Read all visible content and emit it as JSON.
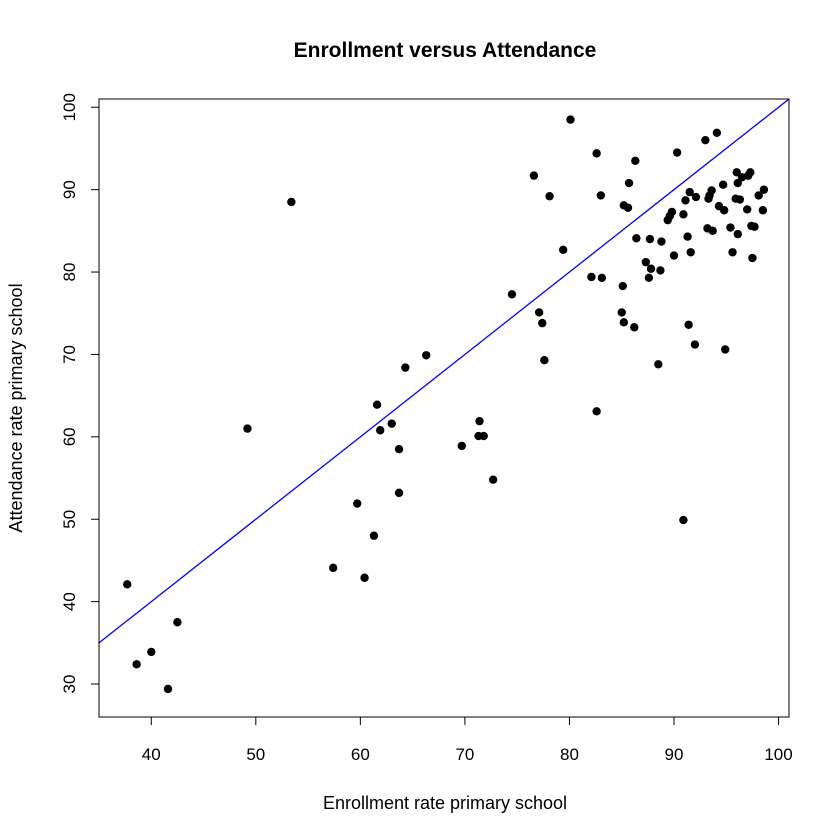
{
  "chart_data": {
    "type": "scatter",
    "title": "Enrollment versus Attendance",
    "xlabel": "Enrollment rate primary school",
    "ylabel": "Attendance rate primary school",
    "xlim": [
      35,
      101
    ],
    "ylim": [
      26,
      101
    ],
    "xticks": [
      "40",
      "50",
      "60",
      "70",
      "80",
      "90",
      "100"
    ],
    "yticks": [
      "30",
      "40",
      "50",
      "60",
      "70",
      "80",
      "90",
      "100"
    ],
    "grid": false,
    "colors": {
      "points": "#000000",
      "line": "#0000ff",
      "frame": "#000000"
    },
    "reference_line": {
      "slope": 1,
      "intercept": 0
    },
    "points": [
      [
        37.7,
        42.1
      ],
      [
        38.6,
        32.4
      ],
      [
        40.0,
        33.9
      ],
      [
        41.6,
        29.4
      ],
      [
        42.5,
        37.5
      ],
      [
        49.2,
        61.0
      ],
      [
        53.4,
        88.5
      ],
      [
        57.4,
        44.1
      ],
      [
        59.7,
        51.9
      ],
      [
        60.4,
        42.9
      ],
      [
        61.3,
        48.0
      ],
      [
        61.6,
        63.9
      ],
      [
        61.9,
        60.8
      ],
      [
        63.0,
        61.6
      ],
      [
        63.7,
        58.5
      ],
      [
        63.7,
        53.2
      ],
      [
        64.3,
        68.4
      ],
      [
        66.3,
        69.9
      ],
      [
        69.7,
        58.9
      ],
      [
        71.3,
        60.1
      ],
      [
        71.4,
        61.9
      ],
      [
        71.8,
        60.1
      ],
      [
        72.7,
        54.8
      ],
      [
        74.5,
        77.3
      ],
      [
        76.6,
        91.7
      ],
      [
        77.1,
        75.1
      ],
      [
        77.4,
        73.8
      ],
      [
        77.6,
        69.3
      ],
      [
        78.1,
        89.2
      ],
      [
        79.4,
        82.7
      ],
      [
        80.1,
        98.5
      ],
      [
        82.1,
        79.4
      ],
      [
        82.6,
        94.4
      ],
      [
        82.6,
        63.1
      ],
      [
        83.0,
        89.3
      ],
      [
        83.1,
        79.3
      ],
      [
        85.0,
        75.1
      ],
      [
        85.1,
        78.3
      ],
      [
        85.2,
        88.1
      ],
      [
        85.2,
        73.9
      ],
      [
        85.6,
        87.8
      ],
      [
        85.7,
        90.8
      ],
      [
        86.2,
        73.3
      ],
      [
        86.3,
        93.5
      ],
      [
        86.4,
        84.1
      ],
      [
        87.3,
        81.2
      ],
      [
        87.6,
        79.3
      ],
      [
        87.7,
        84.0
      ],
      [
        87.8,
        80.4
      ],
      [
        88.5,
        68.8
      ],
      [
        88.7,
        80.2
      ],
      [
        88.8,
        83.7
      ],
      [
        89.4,
        86.3
      ],
      [
        89.6,
        86.8
      ],
      [
        89.8,
        87.3
      ],
      [
        90.0,
        82.0
      ],
      [
        90.3,
        94.5
      ],
      [
        90.9,
        87.0
      ],
      [
        90.9,
        49.9
      ],
      [
        91.1,
        88.7
      ],
      [
        91.3,
        84.3
      ],
      [
        91.4,
        73.6
      ],
      [
        91.5,
        89.7
      ],
      [
        91.6,
        82.4
      ],
      [
        92.0,
        71.2
      ],
      [
        92.1,
        89.1
      ],
      [
        93.0,
        96.0
      ],
      [
        93.2,
        85.3
      ],
      [
        93.3,
        88.9
      ],
      [
        93.4,
        89.3
      ],
      [
        93.6,
        89.9
      ],
      [
        93.7,
        85.0
      ],
      [
        94.1,
        96.9
      ],
      [
        94.3,
        88.0
      ],
      [
        94.7,
        90.6
      ],
      [
        94.8,
        87.5
      ],
      [
        94.9,
        70.6
      ],
      [
        95.4,
        85.4
      ],
      [
        95.6,
        82.4
      ],
      [
        95.9,
        88.9
      ],
      [
        96.0,
        92.1
      ],
      [
        96.1,
        84.6
      ],
      [
        96.1,
        90.8
      ],
      [
        96.3,
        88.8
      ],
      [
        96.5,
        91.5
      ],
      [
        97.0,
        87.6
      ],
      [
        97.1,
        91.7
      ],
      [
        97.3,
        92.1
      ],
      [
        97.4,
        85.6
      ],
      [
        97.5,
        81.7
      ],
      [
        97.7,
        85.5
      ],
      [
        98.1,
        89.3
      ],
      [
        98.5,
        87.5
      ],
      [
        98.6,
        90.0
      ]
    ]
  }
}
